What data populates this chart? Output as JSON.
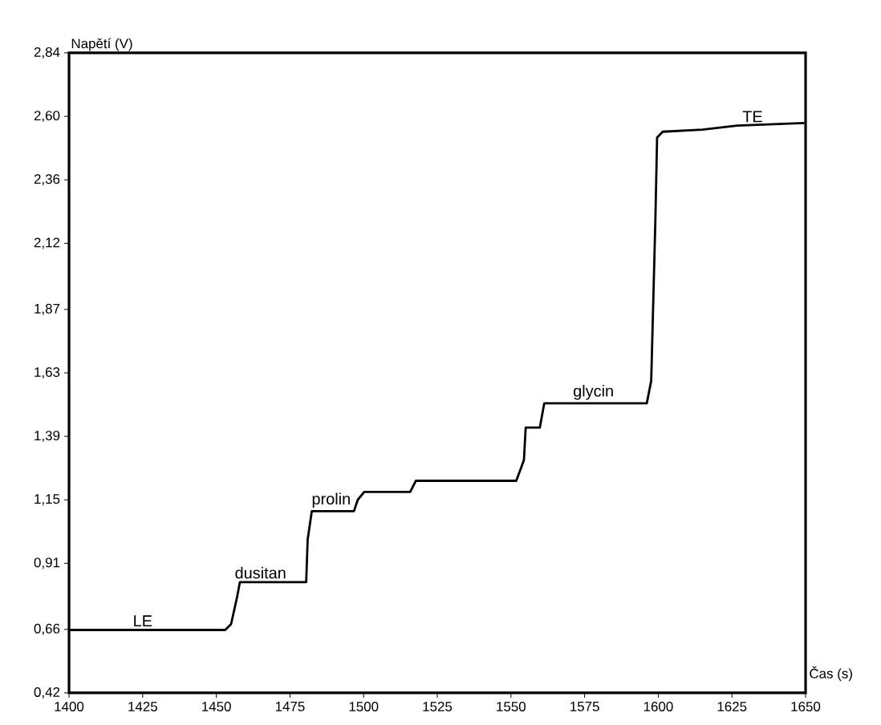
{
  "chart_data": {
    "type": "line",
    "xlabel": "Čas (s)",
    "ylabel": "Napětí (V)",
    "x": [
      1400,
      1453,
      1455,
      1457,
      1458,
      1480.5,
      1481,
      1482.4,
      1496.7,
      1498,
      1500.2,
      1515.8,
      1517.7,
      1551.8,
      1554.4,
      1555,
      1559.8,
      1561.3,
      1596.1,
      1597.6,
      1599,
      1599.6,
      1601.5,
      1615,
      1626.7,
      1649.6
    ],
    "values": [
      0.658,
      0.658,
      0.68,
      0.78,
      0.839,
      0.839,
      1.0,
      1.107,
      1.107,
      1.15,
      1.18,
      1.18,
      1.222,
      1.222,
      1.3,
      1.423,
      1.423,
      1.515,
      1.515,
      1.6,
      2.2,
      2.52,
      2.542,
      2.55,
      2.565,
      2.575
    ],
    "color": "#000000",
    "line_style": "solid",
    "marker": "none",
    "grid": false,
    "xlim": [
      1400,
      1650
    ],
    "ylim": [
      0.42,
      2.84
    ],
    "xticks": [
      1400,
      1425,
      1450,
      1475,
      1500,
      1525,
      1550,
      1575,
      1600,
      1625,
      1650
    ],
    "yticks": [
      {
        "value": 0.42,
        "label": "0,42"
      },
      {
        "value": 0.66,
        "label": "0,66"
      },
      {
        "value": 0.91,
        "label": "0,91"
      },
      {
        "value": 1.15,
        "label": "1,15"
      },
      {
        "value": 1.39,
        "label": "1,39"
      },
      {
        "value": 1.63,
        "label": "1,63"
      },
      {
        "value": 1.87,
        "label": "1,87"
      },
      {
        "value": 2.12,
        "label": "2,12"
      },
      {
        "value": 2.36,
        "label": "2,36"
      },
      {
        "value": 2.6,
        "label": "2,60"
      },
      {
        "value": 2.84,
        "label": "2,84"
      }
    ],
    "annotations": [
      {
        "text": "LE",
        "x": 1425,
        "y": 0.658
      },
      {
        "text": "dusitan",
        "x": 1465,
        "y": 0.839
      },
      {
        "text": "prolin",
        "x": 1489,
        "y": 1.107
      },
      {
        "text": "glycin",
        "x": 1578,
        "y": 1.515
      },
      {
        "text": "TE",
        "x": 1632,
        "y": 2.565
      }
    ]
  }
}
